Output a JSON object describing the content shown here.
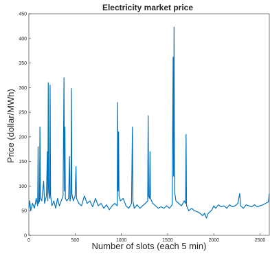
{
  "chart_data": {
    "type": "line",
    "title": "Electricity market price",
    "x_label": "Number of slots (each 5 min)",
    "y_label": "Price (dollar/MWh)",
    "color": "#0072bd",
    "x": [
      0,
      10,
      20,
      40,
      60,
      80,
      95,
      100,
      105,
      115,
      120,
      125,
      140,
      150,
      160,
      170,
      190,
      200,
      205,
      210,
      215,
      225,
      230,
      235,
      250,
      270,
      290,
      310,
      330,
      350,
      370,
      380,
      385,
      390,
      395,
      410,
      430,
      440,
      445,
      455,
      460,
      465,
      480,
      500,
      510,
      515,
      540,
      570,
      600,
      630,
      660,
      690,
      720,
      750,
      780,
      810,
      840,
      870,
      900,
      930,
      955,
      960,
      965,
      970,
      975,
      990,
      1020,
      1050,
      1080,
      1110,
      1120,
      1125,
      1140,
      1170,
      1200,
      1230,
      1260,
      1285,
      1290,
      1295,
      1305,
      1310,
      1315,
      1340,
      1370,
      1400,
      1430,
      1460,
      1490,
      1520,
      1550,
      1560,
      1565,
      1570,
      1575,
      1590,
      1620,
      1650,
      1680,
      1695,
      1700,
      1705,
      1730,
      1760,
      1790,
      1820,
      1850,
      1880,
      1900,
      1920,
      1940,
      1960,
      1980,
      2000,
      2020,
      2050,
      2080,
      2110,
      2140,
      2170,
      2200,
      2230,
      2260,
      2280,
      2290,
      2320,
      2350,
      2380,
      2410,
      2440,
      2470,
      2500,
      2530,
      2560,
      2590,
      2600
    ],
    "values": [
      55,
      70,
      50,
      65,
      55,
      75,
      60,
      180,
      65,
      70,
      220,
      75,
      70,
      90,
      110,
      65,
      80,
      170,
      70,
      310,
      90,
      75,
      305,
      80,
      60,
      70,
      55,
      75,
      60,
      70,
      80,
      320,
      90,
      220,
      75,
      70,
      75,
      160,
      70,
      80,
      298,
      85,
      70,
      80,
      140,
      75,
      65,
      60,
      80,
      65,
      70,
      58,
      75,
      60,
      65,
      55,
      62,
      52,
      60,
      65,
      60,
      270,
      90,
      210,
      80,
      70,
      75,
      60,
      55,
      65,
      220,
      70,
      55,
      62,
      55,
      60,
      65,
      70,
      243,
      80,
      75,
      170,
      75,
      65,
      60,
      55,
      58,
      55,
      60,
      55,
      62,
      362,
      120,
      423,
      90,
      70,
      65,
      60,
      70,
      65,
      205,
      60,
      50,
      55,
      50,
      48,
      45,
      40,
      45,
      35,
      45,
      48,
      52,
      60,
      55,
      62,
      58,
      60,
      55,
      62,
      58,
      60,
      65,
      85,
      60,
      55,
      62,
      60,
      58,
      62,
      58,
      60,
      62,
      65,
      68,
      85
    ],
    "xlim": [
      0,
      2600
    ],
    "xticks": [
      0,
      500,
      1000,
      1500,
      2000,
      2500
    ],
    "ylim": [
      0,
      450
    ],
    "yticks": [
      0,
      50,
      100,
      150,
      200,
      250,
      300,
      350,
      400,
      450
    ]
  }
}
